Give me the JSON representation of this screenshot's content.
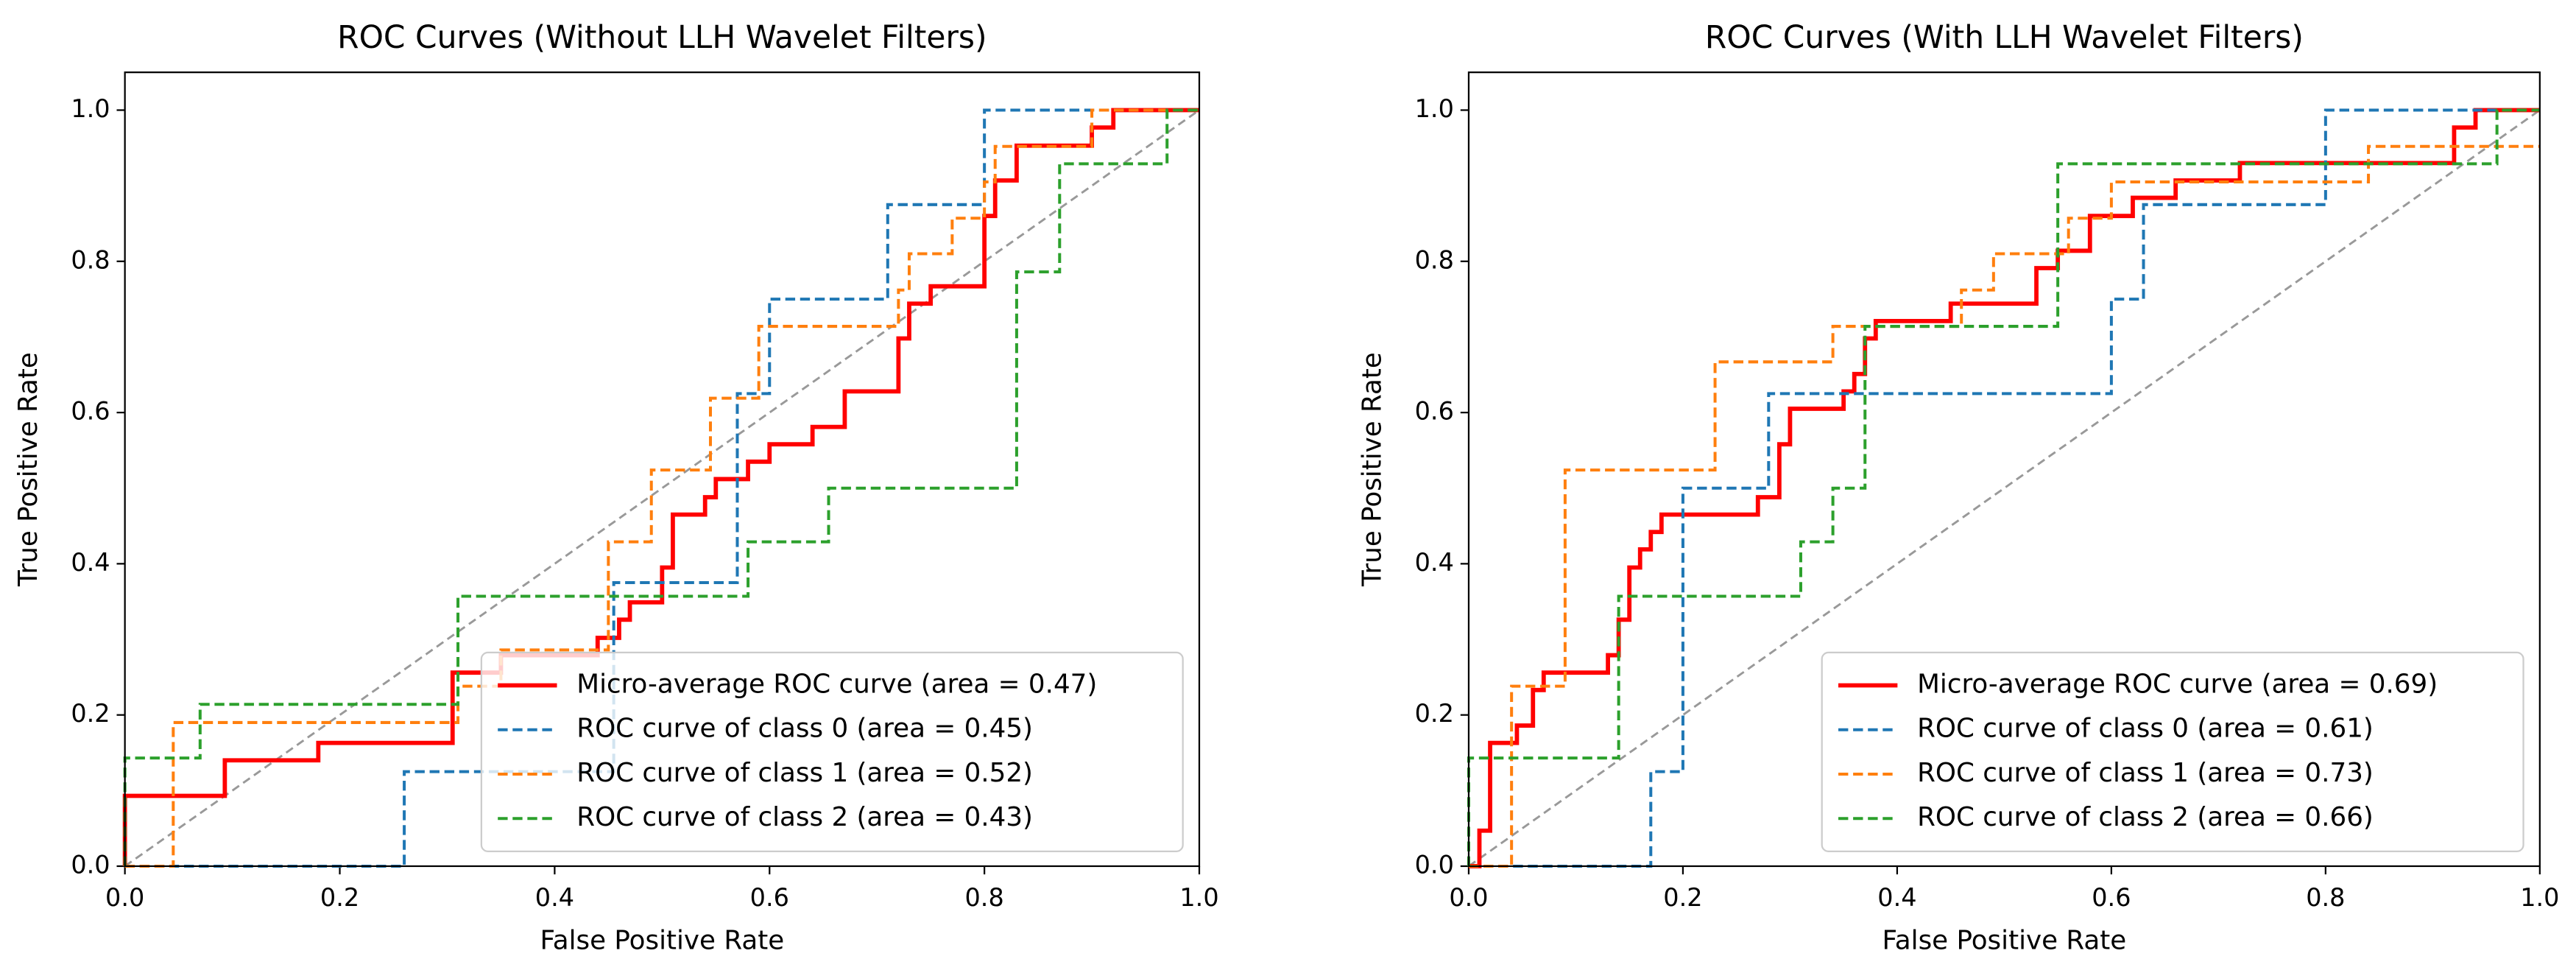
{
  "chart_data": [
    {
      "type": "line",
      "title": "ROC Curves (Without LLH Wavelet Filters)",
      "xlabel": "False Positive Rate",
      "ylabel": "True Positive Rate",
      "xlim": [
        0,
        1
      ],
      "ylim": [
        0,
        1.05
      ],
      "xticks": [
        {
          "value": 0,
          "label": "0.0"
        },
        0.2,
        0.4,
        0.6,
        0.8,
        {
          "value": 1,
          "label": "1.0"
        }
      ],
      "yticks": [
        {
          "value": 0,
          "label": "0.0"
        },
        0.2,
        0.4,
        0.6,
        0.8,
        {
          "value": 1,
          "label": "1.0"
        }
      ],
      "legend": "lower right",
      "series": [
        {
          "name": "Micro-average ROC curve (area = 0.47)",
          "color": "#ff0000",
          "linestyle": "solid",
          "x": [
            0,
            0,
            0.093,
            0.093,
            0.18,
            0.18,
            0.305,
            0.305,
            0.35,
            0.35,
            0.44,
            0.44,
            0.46,
            0.46,
            0.47,
            0.47,
            0.5,
            0.5,
            0.51,
            0.51,
            0.54,
            0.54,
            0.55,
            0.55,
            0.58,
            0.58,
            0.6,
            0.6,
            0.64,
            0.64,
            0.67,
            0.67,
            0.72,
            0.72,
            0.73,
            0.73,
            0.75,
            0.75,
            0.8,
            0.8,
            0.81,
            0.81,
            0.83,
            0.83,
            0.9,
            0.9,
            0.92,
            0.92,
            1
          ],
          "values": [
            0,
            0.093,
            0.093,
            0.14,
            0.14,
            0.163,
            0.163,
            0.256,
            0.256,
            0.279,
            0.279,
            0.302,
            0.302,
            0.326,
            0.326,
            0.349,
            0.349,
            0.395,
            0.395,
            0.465,
            0.465,
            0.488,
            0.488,
            0.512,
            0.512,
            0.535,
            0.535,
            0.558,
            0.558,
            0.581,
            0.581,
            0.628,
            0.628,
            0.698,
            0.698,
            0.744,
            0.744,
            0.767,
            0.767,
            0.86,
            0.86,
            0.907,
            0.907,
            0.953,
            0.953,
            0.977,
            0.977,
            1,
            1
          ]
        },
        {
          "name": "ROC curve of class 0 (area = 0.45)",
          "color": "#1f77b4",
          "linestyle": "dashed",
          "x": [
            0,
            0.26,
            0.26,
            0.455,
            0.455,
            0.57,
            0.57,
            0.6,
            0.6,
            0.71,
            0.71,
            0.8,
            0.8,
            1
          ],
          "values": [
            0,
            0,
            0.125,
            0.125,
            0.375,
            0.375,
            0.625,
            0.625,
            0.75,
            0.75,
            0.875,
            0.875,
            1,
            1
          ]
        },
        {
          "name": "ROC curve of class 1 (area = 0.52)",
          "color": "#ff7f0e",
          "linestyle": "dashed",
          "x": [
            0,
            0.045,
            0.045,
            0.31,
            0.31,
            0.35,
            0.35,
            0.45,
            0.45,
            0.49,
            0.49,
            0.545,
            0.545,
            0.59,
            0.59,
            0.72,
            0.72,
            0.73,
            0.73,
            0.77,
            0.77,
            0.8,
            0.8,
            0.81,
            0.81,
            0.9,
            0.9,
            1
          ],
          "values": [
            0,
            0,
            0.19,
            0.19,
            0.238,
            0.238,
            0.286,
            0.286,
            0.429,
            0.429,
            0.524,
            0.524,
            0.619,
            0.619,
            0.714,
            0.714,
            0.762,
            0.762,
            0.81,
            0.81,
            0.857,
            0.857,
            0.905,
            0.905,
            0.952,
            0.952,
            1,
            1
          ]
        },
        {
          "name": "ROC curve of class 2 (area = 0.43)",
          "color": "#2ca02c",
          "linestyle": "dashed",
          "x": [
            0,
            0,
            0.07,
            0.07,
            0.31,
            0.31,
            0.58,
            0.58,
            0.655,
            0.655,
            0.83,
            0.83,
            0.87,
            0.87,
            0.97,
            0.97,
            1
          ],
          "values": [
            0,
            0.143,
            0.143,
            0.214,
            0.214,
            0.357,
            0.357,
            0.429,
            0.429,
            0.5,
            0.5,
            0.786,
            0.786,
            0.929,
            0.929,
            1,
            1
          ]
        }
      ]
    },
    {
      "type": "line",
      "title": "ROC Curves (With LLH Wavelet Filters)",
      "xlabel": "False Positive Rate",
      "ylabel": "True Positive Rate",
      "xlim": [
        0,
        1
      ],
      "ylim": [
        0,
        1.05
      ],
      "xticks": [
        {
          "value": 0,
          "label": "0.0"
        },
        0.2,
        0.4,
        0.6,
        0.8,
        {
          "value": 1,
          "label": "1.0"
        }
      ],
      "yticks": [
        {
          "value": 0,
          "label": "0.0"
        },
        0.2,
        0.4,
        0.6,
        0.8,
        {
          "value": 1,
          "label": "1.0"
        }
      ],
      "legend": "lower right",
      "series": [
        {
          "name": "Micro-average ROC curve (area = 0.69)",
          "color": "#ff0000",
          "linestyle": "solid",
          "x": [
            0,
            0.01,
            0.01,
            0.02,
            0.02,
            0.045,
            0.045,
            0.06,
            0.06,
            0.07,
            0.07,
            0.13,
            0.13,
            0.14,
            0.14,
            0.15,
            0.15,
            0.16,
            0.16,
            0.17,
            0.17,
            0.18,
            0.18,
            0.27,
            0.27,
            0.29,
            0.29,
            0.3,
            0.3,
            0.35,
            0.35,
            0.36,
            0.36,
            0.37,
            0.37,
            0.38,
            0.38,
            0.45,
            0.45,
            0.53,
            0.53,
            0.55,
            0.55,
            0.58,
            0.58,
            0.62,
            0.62,
            0.66,
            0.66,
            0.72,
            0.72,
            0.92,
            0.92,
            0.94,
            0.94,
            1
          ],
          "values": [
            0,
            0,
            0.047,
            0.047,
            0.163,
            0.163,
            0.186,
            0.186,
            0.233,
            0.233,
            0.256,
            0.256,
            0.279,
            0.279,
            0.326,
            0.326,
            0.395,
            0.395,
            0.419,
            0.419,
            0.442,
            0.442,
            0.465,
            0.465,
            0.488,
            0.488,
            0.558,
            0.558,
            0.605,
            0.605,
            0.628,
            0.628,
            0.651,
            0.651,
            0.698,
            0.698,
            0.721,
            0.721,
            0.744,
            0.744,
            0.791,
            0.791,
            0.814,
            0.814,
            0.86,
            0.86,
            0.884,
            0.884,
            0.907,
            0.907,
            0.93,
            0.93,
            0.977,
            0.977,
            1,
            1
          ]
        },
        {
          "name": "ROC curve of class 0 (area = 0.61)",
          "color": "#1f77b4",
          "linestyle": "dashed",
          "x": [
            0,
            0.17,
            0.17,
            0.2,
            0.2,
            0.28,
            0.28,
            0.6,
            0.6,
            0.63,
            0.63,
            0.8,
            0.8,
            1
          ],
          "values": [
            0,
            0,
            0.125,
            0.125,
            0.5,
            0.5,
            0.625,
            0.625,
            0.75,
            0.75,
            0.875,
            0.875,
            1,
            1
          ]
        },
        {
          "name": "ROC curve of class 1 (area = 0.73)",
          "color": "#ff7f0e",
          "linestyle": "dashed",
          "x": [
            0,
            0.04,
            0.04,
            0.09,
            0.09,
            0.23,
            0.23,
            0.34,
            0.34,
            0.46,
            0.46,
            0.49,
            0.49,
            0.56,
            0.56,
            0.6,
            0.6,
            0.84,
            0.84,
            1
          ],
          "values": [
            0,
            0,
            0.238,
            0.238,
            0.524,
            0.524,
            0.667,
            0.667,
            0.714,
            0.714,
            0.762,
            0.762,
            0.81,
            0.81,
            0.857,
            0.857,
            0.905,
            0.905,
            0.952,
            0.952
          ]
        },
        {
          "name": "ROC curve of class 2 (area = 0.66)",
          "color": "#2ca02c",
          "linestyle": "dashed",
          "x": [
            0,
            0,
            0.14,
            0.14,
            0.31,
            0.31,
            0.34,
            0.34,
            0.37,
            0.37,
            0.55,
            0.55,
            0.96,
            0.96,
            1
          ],
          "values": [
            0,
            0.143,
            0.143,
            0.357,
            0.357,
            0.429,
            0.429,
            0.5,
            0.5,
            0.714,
            0.714,
            0.929,
            0.929,
            1,
            1
          ]
        }
      ]
    }
  ]
}
